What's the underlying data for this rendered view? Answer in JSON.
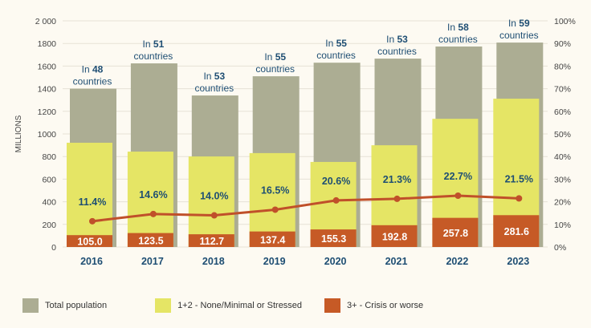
{
  "chart_data": {
    "type": "bar",
    "categories": [
      "2016",
      "2017",
      "2018",
      "2019",
      "2020",
      "2021",
      "2022",
      "2023"
    ],
    "ylabel": "MILLIONS",
    "ylim": [
      0,
      2000
    ],
    "yticks": [
      0,
      200,
      400,
      600,
      800,
      1000,
      1200,
      1400,
      1600,
      1800,
      2000
    ],
    "ytick_labels": [
      "0",
      "200",
      "400",
      "600",
      "800",
      "1000",
      "1200",
      "1400",
      "1600",
      "1800",
      "2 000"
    ],
    "y2lim": [
      0,
      100
    ],
    "y2tick_labels": [
      "0%",
      "10%",
      "20%",
      "30%",
      "40%",
      "50%",
      "60%",
      "70%",
      "80%",
      "90%",
      "100%"
    ],
    "grid": true,
    "legend_placement": "bottom",
    "series": [
      {
        "name": "Total population",
        "type": "bar",
        "color": "#acad93",
        "values": [
          1400,
          1624,
          1340,
          1510,
          1630,
          1666,
          1773,
          1808
        ]
      },
      {
        "name": "1+2 - None/Minimal or Stressed",
        "type": "bar",
        "color": "#e5e565",
        "values": [
          817,
          720,
          688,
          693,
          597,
          707,
          876,
          1030
        ]
      },
      {
        "name": "3+ - Crisis or worse",
        "type": "bar",
        "color": "#c65a26",
        "values": [
          105.0,
          123.5,
          112.7,
          137.4,
          155.3,
          192.8,
          257.8,
          281.6
        ],
        "labels": [
          "105.0",
          "123.5",
          "112.7",
          "137.4",
          "155.3",
          "192.8",
          "257.8",
          "281.6"
        ]
      },
      {
        "type": "line",
        "axis": "right",
        "color": "#c0502a",
        "values": [
          11.4,
          14.6,
          14.0,
          16.5,
          20.6,
          21.3,
          22.7,
          21.5
        ],
        "labels": [
          "11.4%",
          "14.6%",
          "14.0%",
          "16.5%",
          "20.6%",
          "21.3%",
          "22.7%",
          "21.5%"
        ]
      }
    ],
    "annotations": {
      "prefix": "In",
      "counts": [
        "48",
        "51",
        "53",
        "55",
        "55",
        "53",
        "58",
        "59"
      ],
      "suffix": "countries"
    },
    "colors": {
      "text_blue": "#1e4e73",
      "grid": "#e6e2d6",
      "background": "#fdfaf2"
    }
  }
}
